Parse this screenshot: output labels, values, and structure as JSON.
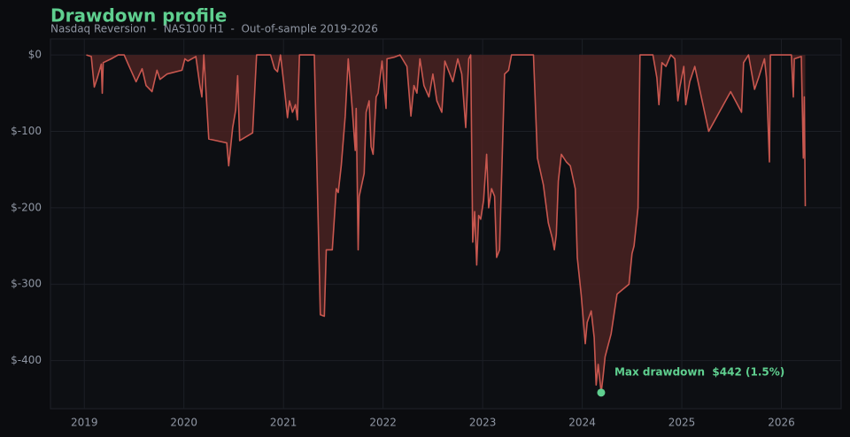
{
  "chart_data": {
    "type": "area",
    "title": "Drawdown profile",
    "subtitle": "Nasdaq Reversion  -  NAS100 H1  -  Out-of-sample 2019-2026",
    "annotation": "Max drawdown  $442 (1.5%)",
    "color": "#c8574f",
    "fill_color": "#4a2222",
    "marker_color": "#5fcf8f",
    "grid": true,
    "xlim": [
      2018.66,
      2026.6
    ],
    "xticks": [
      2019,
      2020,
      2021,
      2022,
      2023,
      2024,
      2025,
      2026
    ],
    "ylim": [
      -463,
      21
    ],
    "yticks": [
      {
        "value": 0,
        "label": "$0"
      },
      {
        "value": -100,
        "label": "$-100"
      },
      {
        "value": -200,
        "label": "$-200"
      },
      {
        "value": -300,
        "label": "$-300"
      },
      {
        "value": -400,
        "label": "$-400"
      }
    ],
    "x": [
      2019.02,
      2019.07,
      2019.1,
      2019.13,
      2019.17,
      2019.18,
      2019.19,
      2019.27,
      2019.34,
      2019.4,
      2019.45,
      2019.52,
      2019.58,
      2019.62,
      2019.68,
      2019.73,
      2019.76,
      2019.83,
      2019.98,
      2020.01,
      2020.04,
      2020.12,
      2020.16,
      2020.18,
      2020.2,
      2020.25,
      2020.43,
      2020.45,
      2020.49,
      2020.52,
      2020.54,
      2020.56,
      2020.69,
      2020.73,
      2020.87,
      2020.91,
      2020.94,
      2020.97,
      2021.01,
      2021.04,
      2021.06,
      2021.09,
      2021.12,
      2021.14,
      2021.16,
      2021.31,
      2021.37,
      2021.41,
      2021.43,
      2021.49,
      2021.53,
      2021.55,
      2021.58,
      2021.62,
      2021.65,
      2021.69,
      2021.72,
      2021.73,
      2021.75,
      2021.76,
      2021.81,
      2021.83,
      2021.86,
      2021.88,
      2021.9,
      2021.93,
      2021.95,
      2021.99,
      2022.03,
      2022.04,
      2022.11,
      2022.17,
      2022.24,
      2022.28,
      2022.31,
      2022.34,
      2022.37,
      2022.41,
      2022.46,
      2022.5,
      2022.54,
      2022.59,
      2022.62,
      2022.7,
      2022.75,
      2022.79,
      2022.83,
      2022.86,
      2022.88,
      2022.9,
      2022.92,
      2022.94,
      2022.96,
      2022.98,
      2023.01,
      2023.04,
      2023.06,
      2023.09,
      2023.12,
      2023.14,
      2023.17,
      2023.22,
      2023.26,
      2023.29,
      2023.47,
      2023.51,
      2023.55,
      2023.61,
      2023.66,
      2023.7,
      2023.72,
      2023.74,
      2023.76,
      2023.79,
      2023.84,
      2023.88,
      2023.93,
      2023.95,
      2023.99,
      2024.03,
      2024.05,
      2024.09,
      2024.12,
      2024.14,
      2024.16,
      2024.19,
      2024.21,
      2024.23,
      2024.26,
      2024.29,
      2024.35,
      2024.47,
      2024.5,
      2024.52,
      2024.56,
      2024.58,
      2024.71,
      2024.75,
      2024.77,
      2024.8,
      2024.84,
      2024.89,
      2024.93,
      2024.96,
      2024.98,
      2025.02,
      2025.04,
      2025.08,
      2025.13,
      2025.27,
      2025.49,
      2025.6,
      2025.62,
      2025.67,
      2025.73,
      2025.77,
      2025.83,
      2025.85,
      2025.88,
      2025.89,
      2026.1,
      2026.12,
      2026.13,
      2026.2,
      2026.22,
      2026.23,
      2026.24
    ],
    "series": [
      {
        "name": "Drawdown",
        "values": [
          0,
          -2,
          -42,
          -30,
          -12,
          -50,
          -10,
          -5,
          0,
          0,
          -15,
          -35,
          -18,
          -40,
          -48,
          -20,
          -32,
          -25,
          -20,
          -5,
          -8,
          -2,
          -40,
          -55,
          0,
          -110,
          -115,
          -145,
          -95,
          -72,
          -27,
          -112,
          -102,
          0,
          0,
          -18,
          -22,
          0,
          -45,
          -82,
          -60,
          -75,
          -65,
          -85,
          0,
          0,
          -340,
          -342,
          -255,
          -255,
          -175,
          -180,
          -145,
          -80,
          -5,
          -70,
          -125,
          -70,
          -255,
          -185,
          -155,
          -75,
          -60,
          -120,
          -130,
          -55,
          -50,
          -8,
          -70,
          -5,
          -3,
          0,
          -15,
          -80,
          -40,
          -50,
          -5,
          -40,
          -55,
          -25,
          -60,
          -75,
          -8,
          -35,
          -5,
          -25,
          -95,
          -5,
          0,
          -245,
          -205,
          -275,
          -210,
          -215,
          -190,
          -130,
          -200,
          -175,
          -185,
          -265,
          -255,
          -25,
          -20,
          0,
          0,
          0,
          -135,
          -170,
          -220,
          -240,
          -255,
          -235,
          -165,
          -130,
          -140,
          -145,
          -175,
          -265,
          -315,
          -378,
          -350,
          -335,
          -370,
          -432,
          -405,
          -442,
          -420,
          -395,
          -380,
          -365,
          -313,
          -300,
          -260,
          -250,
          -200,
          0,
          0,
          -30,
          -65,
          -10,
          -15,
          0,
          -5,
          -60,
          -42,
          -15,
          -65,
          -35,
          -15,
          -100,
          -48,
          -75,
          -10,
          0,
          -45,
          -30,
          -5,
          -30,
          -140,
          0,
          0,
          -55,
          -5,
          -2,
          -135,
          -55,
          -198
        ]
      }
    ]
  }
}
